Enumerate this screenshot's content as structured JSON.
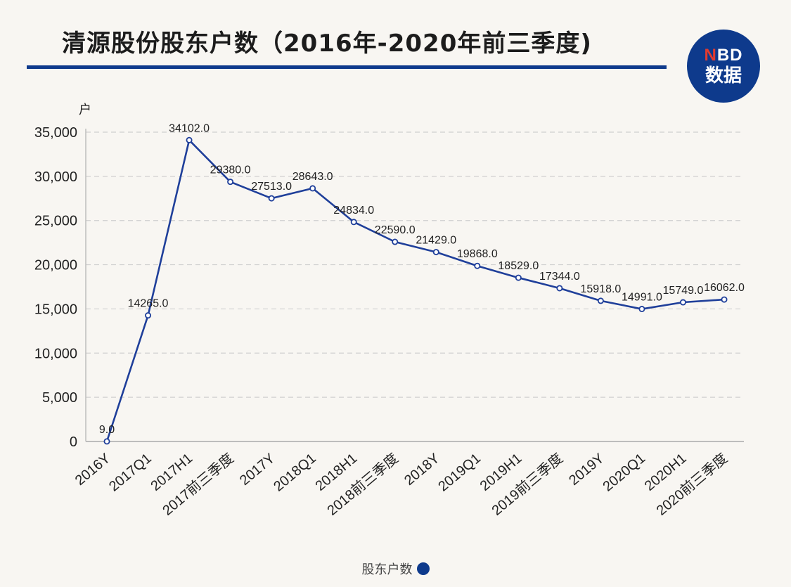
{
  "title": "清源股份股东户数（2016年-2020年前三季度)",
  "logo": {
    "brand_n": "N",
    "brand_rest": "BD",
    "sub": "数据"
  },
  "colors": {
    "line": "#1f3f9a",
    "accent": "#0e3a8c",
    "grid": "#cfcfcf"
  },
  "chart_data": {
    "type": "line",
    "ylabel": "户",
    "ylim": [
      0,
      35000
    ],
    "yticks": [
      0,
      5000,
      10000,
      15000,
      20000,
      25000,
      30000,
      35000
    ],
    "ytick_labels": [
      "0",
      "5,000",
      "10,000",
      "15,000",
      "20,000",
      "25,000",
      "30,000",
      "35,000"
    ],
    "grid": true,
    "legend_position": "bottom-center",
    "categories": [
      "2016Y",
      "2017Q1",
      "2017H1",
      "2017前三季度",
      "2017Y",
      "2018Q1",
      "2018H1",
      "2018前三季度",
      "2018Y",
      "2019Q1",
      "2019H1",
      "2019前三季度",
      "2019Y",
      "2020Q1",
      "2020H1",
      "2020前三季度"
    ],
    "series": [
      {
        "name": "股东户数",
        "values": [
          9.0,
          14265.0,
          34102.0,
          29380.0,
          27513.0,
          28643.0,
          24834.0,
          22590.0,
          21429.0,
          19868.0,
          18529.0,
          17344.0,
          15918.0,
          14991.0,
          15749.0,
          16062.0
        ],
        "labels": [
          "9.0",
          "14265.0",
          "34102.0",
          "29380.0",
          "27513.0",
          "28643.0",
          "24834.0",
          "22590.0",
          "21429.0",
          "19868.0",
          "18529.0",
          "17344.0",
          "15918.0",
          "14991.0",
          "15749.0",
          "16062.0"
        ]
      }
    ]
  }
}
